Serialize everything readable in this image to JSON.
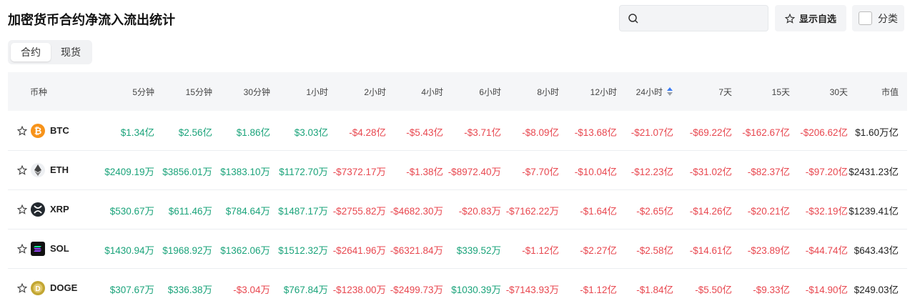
{
  "header": {
    "title": "加密货币合约净流入流出统计",
    "watchlist_button": "显示自选",
    "category_toggle": "分类"
  },
  "tabs": [
    "合约",
    "现货"
  ],
  "table": {
    "columns": [
      "币种",
      "5分钟",
      "15分钟",
      "30分钟",
      "1小时",
      "2小时",
      "4小时",
      "6小时",
      "8小时",
      "12小时",
      "24小时",
      "7天",
      "15天",
      "30天",
      "市值"
    ],
    "rows": [
      {
        "symbol": "BTC",
        "cells": [
          "$1.34亿",
          "$2.56亿",
          "$1.86亿",
          "$3.03亿",
          "-$4.28亿",
          "-$5.43亿",
          "-$3.71亿",
          "-$8.09亿",
          "-$13.68亿",
          "-$21.07亿",
          "-$69.22亿",
          "-$162.67亿",
          "-$206.62亿",
          "$1.60万亿"
        ]
      },
      {
        "symbol": "ETH",
        "cells": [
          "$2409.19万",
          "$3856.01万",
          "$1383.10万",
          "$1172.70万",
          "-$7372.17万",
          "-$1.38亿",
          "-$8972.40万",
          "-$7.70亿",
          "-$10.04亿",
          "-$12.23亿",
          "-$31.02亿",
          "-$82.37亿",
          "-$97.20亿",
          "$2431.23亿"
        ]
      },
      {
        "symbol": "XRP",
        "cells": [
          "$530.67万",
          "$611.46万",
          "$784.64万",
          "$1487.17万",
          "-$2755.82万",
          "-$4682.30万",
          "-$20.83万",
          "-$7162.22万",
          "-$1.64亿",
          "-$2.65亿",
          "-$14.26亿",
          "-$20.21亿",
          "-$32.19亿",
          "$1239.41亿"
        ]
      },
      {
        "symbol": "SOL",
        "cells": [
          "$1430.94万",
          "$1968.92万",
          "$1362.06万",
          "$1512.32万",
          "-$2641.96万",
          "-$6321.84万",
          "$339.52万",
          "-$1.12亿",
          "-$2.27亿",
          "-$2.58亿",
          "-$14.61亿",
          "-$23.89亿",
          "-$44.74亿",
          "$643.43亿"
        ]
      },
      {
        "symbol": "DOGE",
        "cells": [
          "$307.67万",
          "$336.38万",
          "-$3.04万",
          "$767.84万",
          "-$1238.00万",
          "-$2499.73万",
          "$1030.39万",
          "-$7143.93万",
          "-$1.12亿",
          "-$1.84亿",
          "-$5.50亿",
          "-$9.33亿",
          "-$14.90亿",
          "$249.03亿"
        ]
      }
    ]
  }
}
